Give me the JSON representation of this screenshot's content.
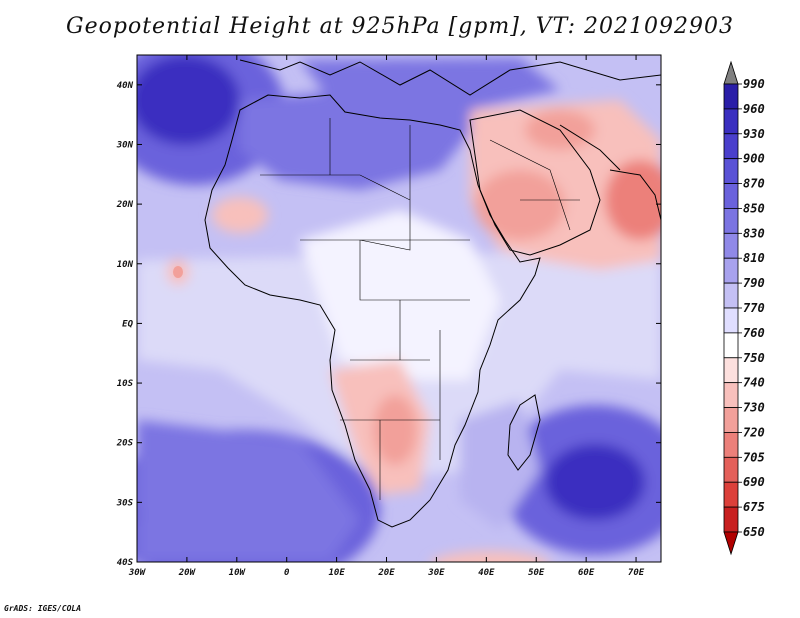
{
  "title": "Geopotential Height at 925hPa [gpm], VT: 2021092903",
  "credit": "GrADS: IGES/COLA",
  "map": {
    "variable": "Geopotential Height",
    "level": "925hPa",
    "units": "gpm",
    "valid_time": "2021092903",
    "lon_range": [
      -30,
      75
    ],
    "lat_range": [
      -40,
      45
    ],
    "lat_ticks": [
      {
        "value": 40,
        "label": "40N"
      },
      {
        "value": 30,
        "label": "30N"
      },
      {
        "value": 20,
        "label": "20N"
      },
      {
        "value": 10,
        "label": "10N"
      },
      {
        "value": 0,
        "label": "EQ"
      },
      {
        "value": -10,
        "label": "10S"
      },
      {
        "value": -20,
        "label": "20S"
      },
      {
        "value": -30,
        "label": "30S"
      },
      {
        "value": -40,
        "label": "40S"
      }
    ],
    "lon_ticks": [
      {
        "value": -30,
        "label": "30W"
      },
      {
        "value": -20,
        "label": "20W"
      },
      {
        "value": -10,
        "label": "10W"
      },
      {
        "value": 0,
        "label": "0"
      },
      {
        "value": 10,
        "label": "10E"
      },
      {
        "value": 20,
        "label": "20E"
      },
      {
        "value": 30,
        "label": "30E"
      },
      {
        "value": 40,
        "label": "40E"
      },
      {
        "value": 50,
        "label": "50E"
      },
      {
        "value": 60,
        "label": "60E"
      },
      {
        "value": 70,
        "label": "70E"
      }
    ]
  },
  "colorbar": {
    "labels": [
      "990",
      "960",
      "930",
      "900",
      "870",
      "850",
      "830",
      "810",
      "790",
      "770",
      "760",
      "750",
      "740",
      "730",
      "720",
      "705",
      "690",
      "675",
      "650"
    ],
    "colors": [
      "#808080",
      "#2a1ea8",
      "#3a2fc0",
      "#4a3fcc",
      "#5a52d6",
      "#6a62dc",
      "#7b74e2",
      "#9089e8",
      "#a8a2ee",
      "#c4c0f4",
      "#e0deff",
      "#ffffff",
      "#fde0de",
      "#f8c0bc",
      "#f2a09a",
      "#ec807a",
      "#e4605a",
      "#dc403a",
      "#c82020",
      "#b00000"
    ]
  },
  "contours": [
    {
      "value": "high",
      "color": "#3a2fc0",
      "region": "north-atlantic"
    },
    {
      "value": "high",
      "color": "#3a2fc0",
      "region": "south-atlantic"
    },
    {
      "value": "high",
      "color": "#3a2fc0",
      "region": "south-indian"
    },
    {
      "value": "low",
      "color": "#f2a09a",
      "region": "arabian-peninsula"
    },
    {
      "value": "low",
      "color": "#f2a09a",
      "region": "southern-africa"
    },
    {
      "value": "low",
      "color": "#f8c0bc",
      "region": "sahel"
    }
  ]
}
